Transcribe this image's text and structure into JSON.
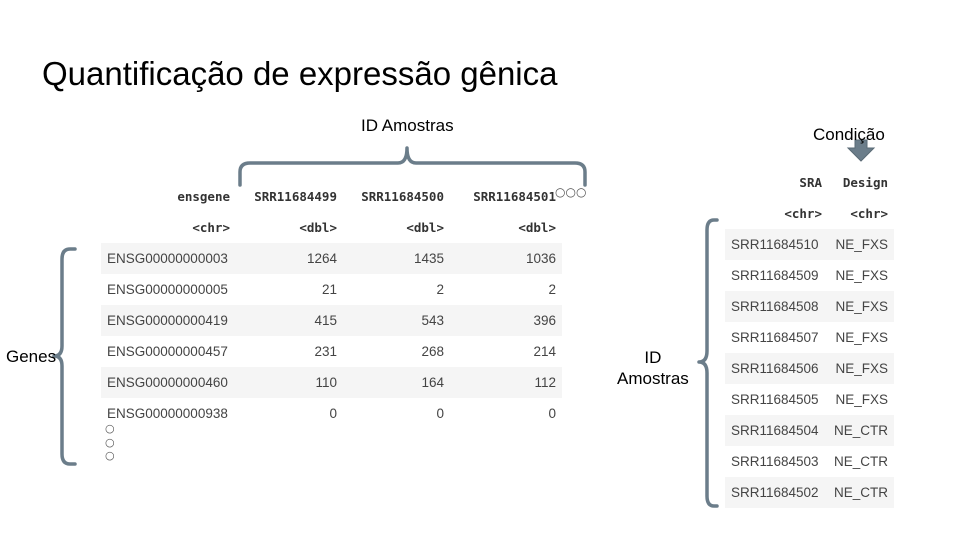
{
  "title": "Quantificação de expressão gênica",
  "labels": {
    "samples_top": "ID Amostras",
    "genes": "Genes",
    "samples_side": "ID\nAmostras",
    "condition": "Condição",
    "more_cols": "○○○",
    "more_rows": [
      "○",
      "○",
      "○"
    ]
  },
  "counts_table": {
    "headers": [
      "ensgene",
      "SRR11684499",
      "SRR11684500",
      "SRR11684501"
    ],
    "types": [
      "<chr>",
      "<dbl>",
      "<dbl>",
      "<dbl>"
    ],
    "rows": [
      [
        "ENSG00000000003",
        "1264",
        "1435",
        "1036"
      ],
      [
        "ENSG00000000005",
        "21",
        "2",
        "2"
      ],
      [
        "ENSG00000000419",
        "415",
        "543",
        "396"
      ],
      [
        "ENSG00000000457",
        "231",
        "268",
        "214"
      ],
      [
        "ENSG00000000460",
        "110",
        "164",
        "112"
      ],
      [
        "ENSG00000000938",
        "0",
        "0",
        "0"
      ]
    ]
  },
  "design_table": {
    "headers": [
      "SRA",
      "Design"
    ],
    "types": [
      "<chr>",
      "<chr>"
    ],
    "rows": [
      [
        "SRR11684510",
        "NE_FXS"
      ],
      [
        "SRR11684509",
        "NE_FXS"
      ],
      [
        "SRR11684508",
        "NE_FXS"
      ],
      [
        "SRR11684507",
        "NE_FXS"
      ],
      [
        "SRR11684506",
        "NE_FXS"
      ],
      [
        "SRR11684505",
        "NE_FXS"
      ],
      [
        "SRR11684504",
        "NE_CTR"
      ],
      [
        "SRR11684503",
        "NE_CTR"
      ],
      [
        "SRR11684502",
        "NE_CTR"
      ]
    ]
  },
  "colors": {
    "brace": "#6b7d8a",
    "arrow": "#6b7d8a",
    "stripe": "#f5f5f5"
  }
}
